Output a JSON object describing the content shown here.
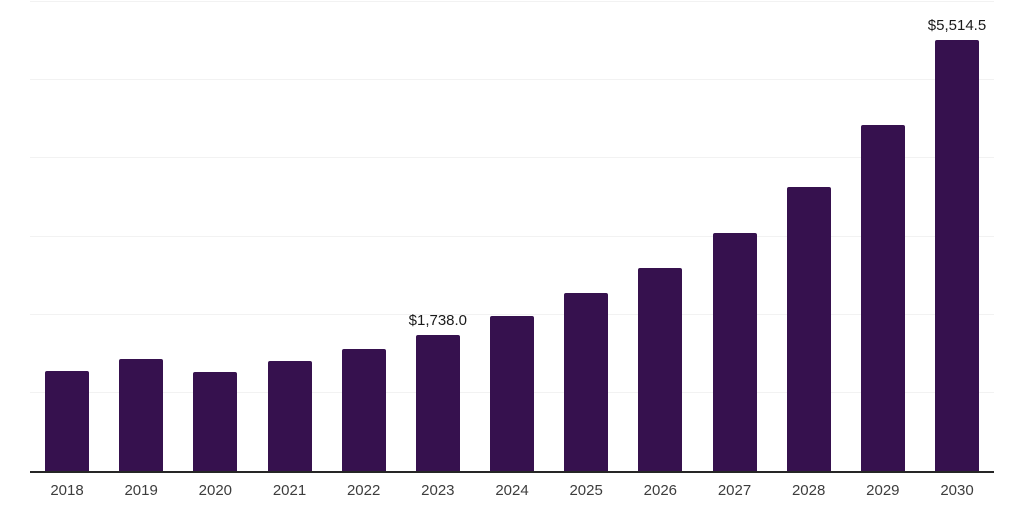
{
  "chart": {
    "background": "#ffffff",
    "bar_color": "#36114E",
    "grid_color": "#f2f2f2",
    "axis_color": "#262626",
    "data_label_color": "#1a1a1a",
    "tick_label_color": "#3d3d3d"
  },
  "chart_data": {
    "type": "bar",
    "title": "",
    "xlabel": "",
    "ylabel": "",
    "categories": [
      "2018",
      "2019",
      "2020",
      "2021",
      "2022",
      "2023",
      "2024",
      "2025",
      "2026",
      "2027",
      "2028",
      "2029",
      "2030"
    ],
    "values": [
      1285,
      1430,
      1265,
      1405,
      1560,
      1738.0,
      1980,
      2275,
      2595,
      3050,
      3635,
      4425,
      5514.5
    ],
    "data_labels": {
      "2023": "$1,738.0",
      "2030": "$5,514.5"
    },
    "ylim": [
      0,
      6000
    ],
    "gridline_interval": 1000,
    "grid": true,
    "legend": false,
    "x_axis_line": true,
    "y_axis_line": false
  }
}
